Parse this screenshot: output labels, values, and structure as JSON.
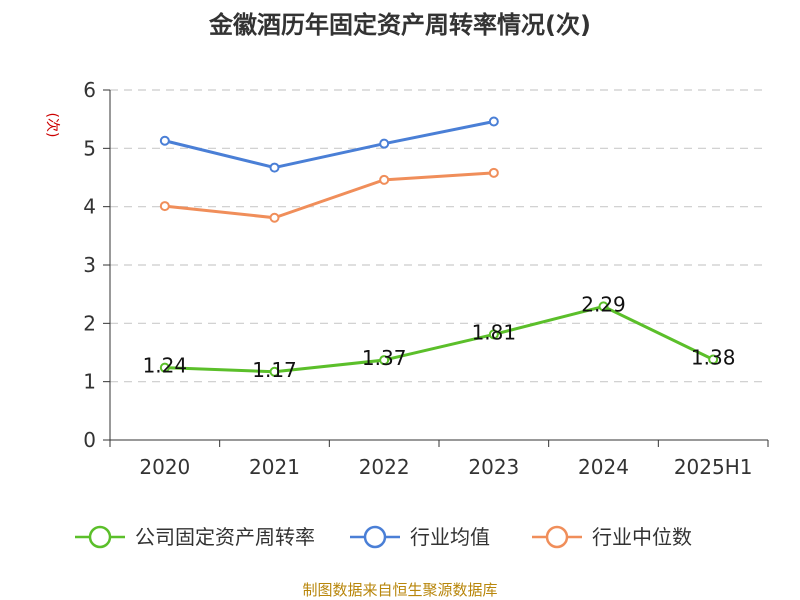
{
  "chart_data": {
    "type": "line",
    "title": "金徽酒历年固定资产周转率情况(次)",
    "ylabel": "(次)",
    "categories": [
      "2020",
      "2021",
      "2022",
      "2023",
      "2024",
      "2025H1"
    ],
    "ylim": [
      0,
      6
    ],
    "yticks": [
      "0",
      "1",
      "2",
      "3",
      "4",
      "5",
      "6"
    ],
    "grid": true,
    "legend_position": "bottom",
    "series": [
      {
        "name": "公司固定资产周转率",
        "color": "#5bbf2a",
        "values": [
          1.24,
          1.17,
          1.37,
          1.81,
          2.29,
          1.38
        ],
        "labels": [
          "1.24",
          "1.17",
          "1.37",
          "1.81",
          "2.29",
          "1.38"
        ]
      },
      {
        "name": "行业均值",
        "color": "#4a7fd6",
        "values": [
          5.13,
          4.67,
          5.08,
          5.46,
          null,
          null
        ]
      },
      {
        "name": "行业中位数",
        "color": "#f08e5a",
        "values": [
          4.01,
          3.81,
          4.46,
          4.58,
          null,
          null
        ]
      }
    ],
    "source": "制图数据来自恒生聚源数据库"
  }
}
